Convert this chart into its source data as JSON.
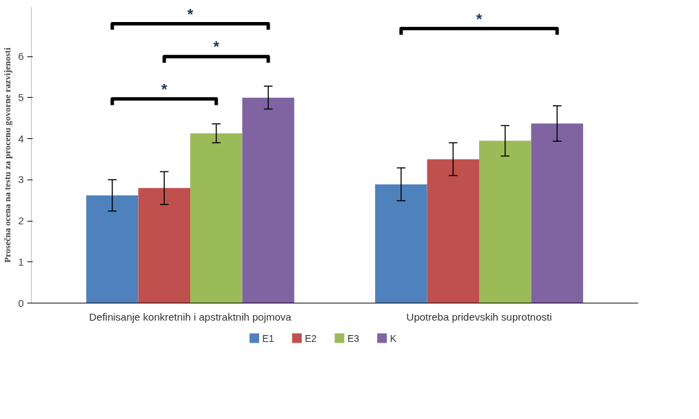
{
  "chart_data": {
    "type": "bar",
    "ylabel": "Prosečna ocena na testu za procenu govorne razvijenosti",
    "categories": [
      "Definisanje konkretnih i apstraktnih pojmova",
      "Upotreba pridevskih suprotnosti"
    ],
    "series": [
      {
        "name": "E1",
        "color": "#4f81bd",
        "values": [
          2.62,
          2.89
        ],
        "errors": [
          0.38,
          0.4
        ]
      },
      {
        "name": "E2",
        "color": "#c0504d",
        "values": [
          2.8,
          3.5
        ],
        "errors": [
          0.4,
          0.4
        ]
      },
      {
        "name": "E3",
        "color": "#9bbb59",
        "values": [
          4.13,
          3.95
        ],
        "errors": [
          0.23,
          0.37
        ]
      },
      {
        "name": "K",
        "color": "#8064a2",
        "values": [
          5.0,
          4.37
        ],
        "errors": [
          0.28,
          0.43
        ]
      }
    ],
    "ylim": [
      0,
      7.2
    ],
    "yticks": [
      0,
      1,
      2,
      3,
      4,
      5,
      6
    ],
    "grid": false,
    "legend": "bottom",
    "annotations": [
      "*",
      "*",
      "*",
      "*"
    ]
  }
}
